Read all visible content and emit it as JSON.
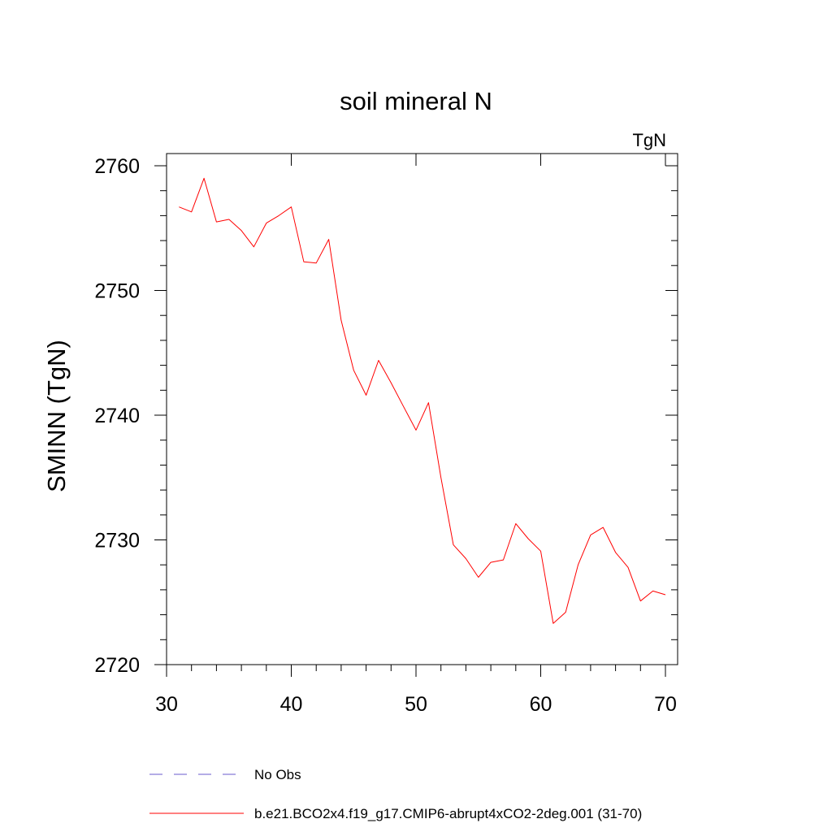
{
  "chart_data": {
    "type": "line",
    "title": "soil mineral N",
    "units": "TgN",
    "ylabel": "SMINN  (TgN)",
    "xlabel": "",
    "xlim": [
      30,
      70
    ],
    "ylim": [
      2720,
      2760
    ],
    "xticks": [
      30,
      40,
      50,
      60,
      70
    ],
    "xtick_labels": [
      "30",
      "40",
      "50",
      "60",
      "70"
    ],
    "yticks": [
      2720,
      2730,
      2740,
      2750,
      2760
    ],
    "ytick_labels": [
      "2720",
      "2730",
      "2740",
      "2750",
      "2760"
    ],
    "grid": false,
    "legend_placement": "bottom",
    "legend": [
      {
        "label": "No Obs",
        "color": "#6a5acd",
        "dash": "dashed"
      },
      {
        "label": "b.e21.BCO2x4.f19_g17.CMIP6-abrupt4xCO2-2deg.001 (31-70)",
        "color": "#ff0000",
        "dash": "solid"
      }
    ],
    "series": [
      {
        "name": "b.e21.BCO2x4.f19_g17.CMIP6-abrupt4xCO2-2deg.001 (31-70)",
        "color": "#ff0000",
        "x": [
          31,
          32,
          33,
          34,
          35,
          36,
          37,
          38,
          39,
          40,
          41,
          42,
          43,
          44,
          45,
          46,
          47,
          48,
          49,
          50,
          51,
          52,
          53,
          54,
          55,
          56,
          57,
          58,
          59,
          60,
          61,
          62,
          63,
          64,
          65,
          66,
          67,
          68,
          69,
          70
        ],
        "values": [
          2756.7,
          2756.3,
          2759.0,
          2755.5,
          2755.7,
          2754.8,
          2753.5,
          2755.4,
          2756.0,
          2756.7,
          2752.3,
          2752.2,
          2754.1,
          2747.6,
          2743.6,
          2741.6,
          2744.4,
          2742.6,
          2740.7,
          2738.8,
          2741.0,
          2735.0,
          2729.6,
          2728.5,
          2727.0,
          2728.2,
          2728.4,
          2731.3,
          2730.1,
          2729.1,
          2723.3,
          2724.2,
          2728.0,
          2730.4,
          2731.0,
          2729.0,
          2727.8,
          2725.1,
          2725.9,
          2725.6
        ]
      }
    ]
  }
}
